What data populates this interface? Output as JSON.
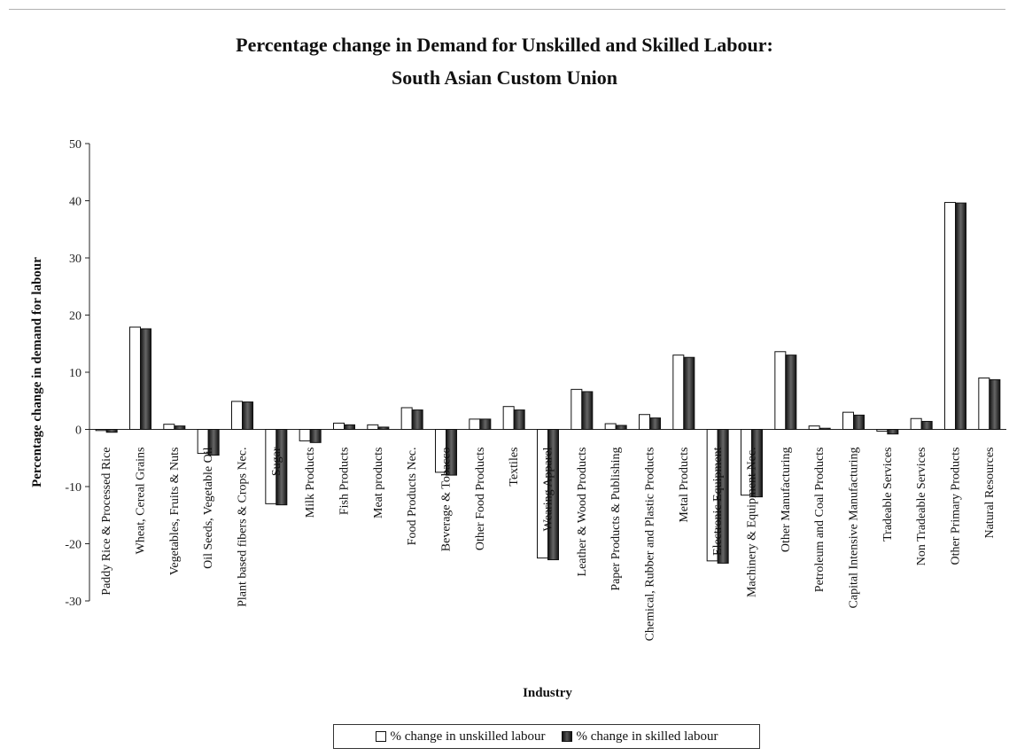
{
  "chart_data": {
    "type": "bar",
    "title": "Percentage change in Demand for Unskilled and Skilled Labour:",
    "subtitle": "South Asian Custom Union",
    "xlabel": "Industry",
    "ylabel": "Percentage change in demand for labour",
    "ylim": [
      -30,
      50
    ],
    "yticks": [
      -30,
      -20,
      -10,
      0,
      10,
      20,
      30,
      40,
      50
    ],
    "grid": false,
    "legend_position": "bottom",
    "categories": [
      "Paddy Rice & Processed Rice",
      "Wheat, Cereal Grains",
      "Vegetables, Fruits & Nuts",
      "Oil Seeds, Vegetable Oil",
      "Plant based fibers & Crops Nec.",
      "Sugar",
      "Milk Products",
      "Fish Products",
      "Meat products",
      "Food Products Nec.",
      "Beverage & Tobacco",
      "Other Food Products",
      "Textiles",
      "Wearing Apparel",
      "Leather & Wood Products",
      "Paper Products & Publishing",
      "Chemical, Rubber and Plastic Products",
      "Metal Products",
      "Electronic Equipment",
      "Machinery & Equipment Nec.",
      "Other Manufacturing",
      "Petroleum and Coal Products",
      "Capital Intensive Manufacturing",
      "Tradeable Services",
      "Non Tradeable Services",
      "Other Primary Products",
      "Natural Resources"
    ],
    "series": [
      {
        "name": "% change in unskilled labour",
        "color": "#ffffff",
        "values": [
          -0.2,
          17.9,
          0.9,
          -4.2,
          4.9,
          -13.0,
          -2.0,
          1.1,
          0.8,
          3.8,
          -7.5,
          1.8,
          4.0,
          -22.5,
          7.0,
          1.0,
          2.6,
          13.0,
          -23.0,
          -11.5,
          13.6,
          0.6,
          3.0,
          -0.3,
          1.9,
          39.7,
          9.0
        ]
      },
      {
        "name": "% change in skilled labour",
        "color": "#222222",
        "values": [
          -0.5,
          17.6,
          0.6,
          -4.5,
          4.8,
          -13.2,
          -2.3,
          0.8,
          0.4,
          3.4,
          -8.0,
          1.8,
          3.4,
          -22.8,
          6.6,
          0.7,
          2.0,
          12.6,
          -23.4,
          -11.8,
          13.0,
          0.2,
          2.5,
          -0.8,
          1.4,
          39.6,
          8.7
        ]
      }
    ]
  }
}
